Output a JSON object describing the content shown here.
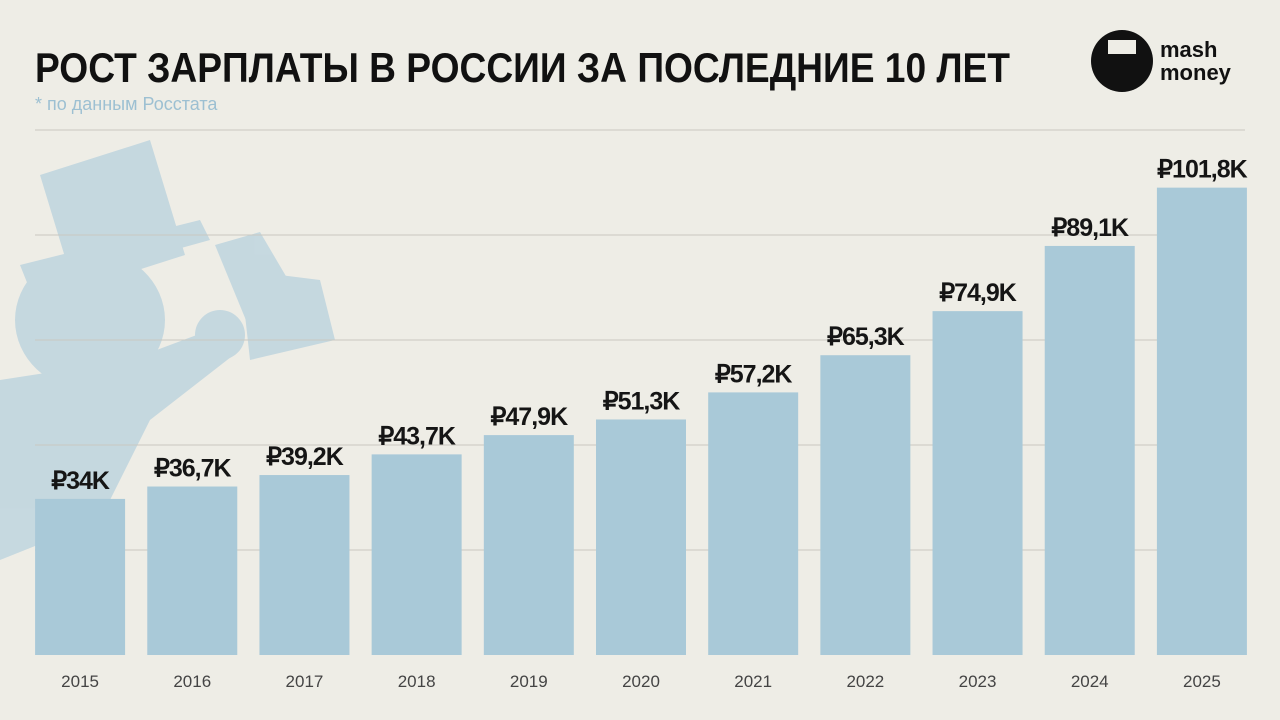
{
  "chart_data": {
    "type": "bar",
    "title": "РОСТ ЗАРПЛАТЫ В РОССИИ ЗА ПОСЛЕДНИЕ 10 ЛЕТ",
    "subtitle": "* по данным Росстата",
    "categories": [
      "2015",
      "2016",
      "2017",
      "2018",
      "2019",
      "2020",
      "2021",
      "2022",
      "2023",
      "2024",
      "2025"
    ],
    "values": [
      34,
      36.7,
      39.2,
      43.7,
      47.9,
      51.3,
      57.2,
      65.3,
      74.9,
      89.1,
      101.8
    ],
    "value_labels": [
      "₽34K",
      "₽36,7K",
      "₽39,2K",
      "₽43,7K",
      "₽47,9K",
      "₽51,3K",
      "₽57,2K",
      "₽65,3K",
      "₽74,9K",
      "₽89,1K",
      "₽101,8K"
    ],
    "color": "#a9c9d8",
    "ylim": [
      0,
      110
    ]
  },
  "logo": [
    "mash",
    "money"
  ]
}
